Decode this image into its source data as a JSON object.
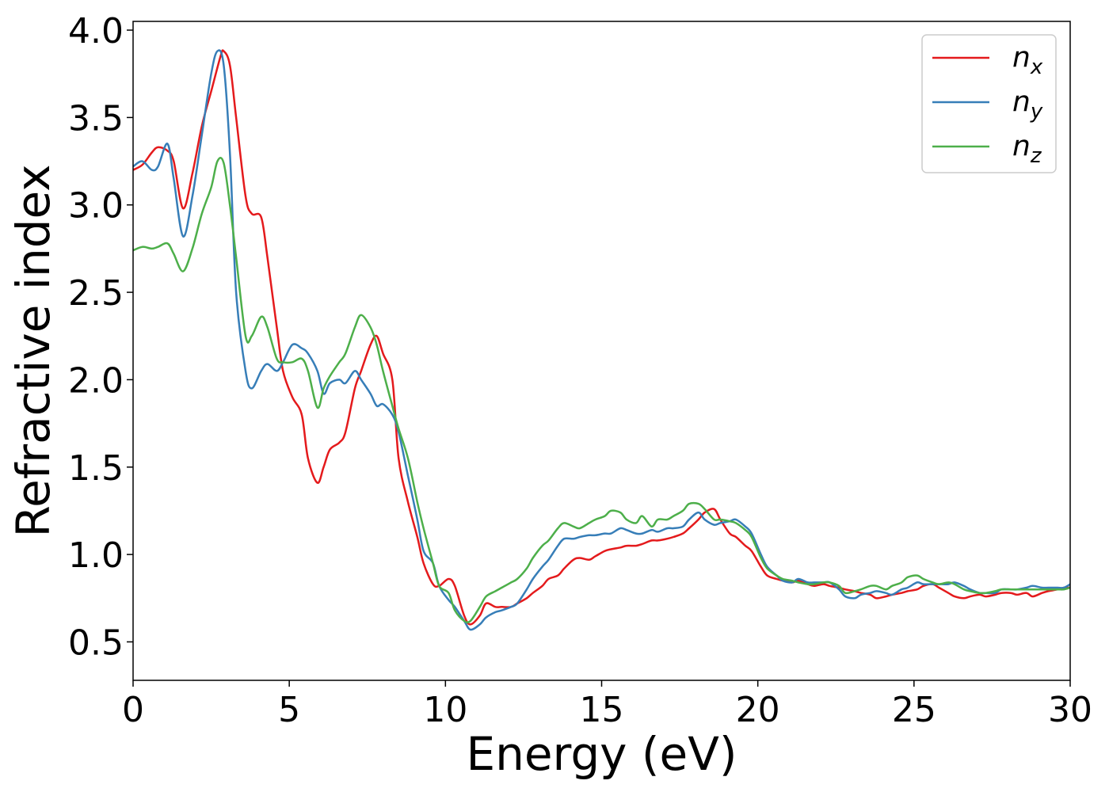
{
  "chart_data": {
    "type": "line",
    "xlabel": "Energy (eV)",
    "ylabel": "Refractive index",
    "xlim": [
      0,
      30
    ],
    "ylim": [
      0.28,
      4.05
    ],
    "xticks": [
      "0",
      "5",
      "10",
      "15",
      "20",
      "25",
      "30"
    ],
    "yticks": [
      "0.5",
      "1.0",
      "1.5",
      "2.0",
      "2.5",
      "3.0",
      "3.5",
      "4.0"
    ],
    "grid": false,
    "legend_position": "top-right",
    "series": [
      {
        "name": "n",
        "subscript": "x",
        "color": "#e41a1c",
        "x": [
          0,
          0.3,
          0.6,
          0.8,
          1.1,
          1.3,
          1.6,
          1.9,
          2.2,
          2.5,
          2.8,
          2.9,
          3.1,
          3.3,
          3.6,
          3.8,
          4.1,
          4.3,
          4.6,
          4.8,
          5.1,
          5.4,
          5.6,
          5.9,
          6.1,
          6.3,
          6.6,
          6.8,
          7.1,
          7.3,
          7.6,
          7.8,
          8.0,
          8.3,
          8.5,
          8.8,
          9.1,
          9.3,
          9.6,
          9.8,
          10.1,
          10.3,
          10.6,
          10.8,
          11.1,
          11.3,
          11.6,
          11.8,
          12.1,
          12.3,
          12.6,
          12.8,
          13.1,
          13.3,
          13.6,
          13.8,
          14.1,
          14.3,
          14.6,
          14.8,
          15.1,
          15.3,
          15.6,
          15.8,
          16.1,
          16.3,
          16.6,
          16.8,
          17.1,
          17.3,
          17.6,
          17.8,
          18.1,
          18.3,
          18.6,
          18.8,
          19.1,
          19.3,
          19.6,
          19.8,
          20.1,
          20.3,
          20.6,
          20.8,
          21.1,
          21.3,
          21.6,
          21.8,
          22.1,
          22.3,
          22.6,
          22.8,
          23.1,
          23.3,
          23.6,
          23.8,
          24.1,
          24.3,
          24.6,
          24.8,
          25.1,
          25.3,
          25.6,
          25.8,
          26.1,
          26.3,
          26.6,
          26.8,
          27.1,
          27.3,
          27.6,
          27.8,
          28.1,
          28.3,
          28.6,
          28.8,
          29.1,
          29.3,
          29.6,
          29.8,
          30
        ],
        "y": [
          3.2,
          3.23,
          3.3,
          3.33,
          3.31,
          3.25,
          2.98,
          3.18,
          3.45,
          3.65,
          3.85,
          3.88,
          3.8,
          3.5,
          3.05,
          2.95,
          2.93,
          2.7,
          2.3,
          2.05,
          1.9,
          1.8,
          1.55,
          1.41,
          1.5,
          1.6,
          1.64,
          1.7,
          1.95,
          2.05,
          2.2,
          2.25,
          2.15,
          2.0,
          1.55,
          1.3,
          1.1,
          0.95,
          0.83,
          0.82,
          0.86,
          0.82,
          0.65,
          0.6,
          0.65,
          0.72,
          0.7,
          0.7,
          0.7,
          0.72,
          0.75,
          0.78,
          0.82,
          0.86,
          0.88,
          0.92,
          0.97,
          0.98,
          0.97,
          0.99,
          1.02,
          1.03,
          1.04,
          1.05,
          1.05,
          1.06,
          1.08,
          1.08,
          1.09,
          1.1,
          1.12,
          1.15,
          1.2,
          1.24,
          1.26,
          1.2,
          1.12,
          1.1,
          1.05,
          1.02,
          0.93,
          0.88,
          0.86,
          0.85,
          0.84,
          0.85,
          0.83,
          0.82,
          0.83,
          0.82,
          0.81,
          0.8,
          0.79,
          0.78,
          0.77,
          0.75,
          0.76,
          0.77,
          0.78,
          0.79,
          0.8,
          0.82,
          0.83,
          0.81,
          0.78,
          0.76,
          0.75,
          0.76,
          0.77,
          0.76,
          0.77,
          0.78,
          0.78,
          0.77,
          0.78,
          0.76,
          0.78,
          0.79,
          0.8,
          0.81,
          0.81
        ]
      },
      {
        "name": "n",
        "subscript": "y",
        "color": "#377eb8",
        "x": [
          0,
          0.3,
          0.6,
          0.8,
          1.1,
          1.3,
          1.6,
          1.9,
          2.2,
          2.5,
          2.7,
          2.9,
          3.1,
          3.3,
          3.6,
          3.8,
          4.1,
          4.3,
          4.6,
          4.8,
          5.1,
          5.4,
          5.6,
          5.9,
          6.1,
          6.3,
          6.6,
          6.8,
          7.1,
          7.3,
          7.6,
          7.8,
          8.0,
          8.3,
          8.5,
          8.8,
          9.1,
          9.3,
          9.6,
          9.8,
          10.1,
          10.3,
          10.6,
          10.8,
          11.1,
          11.3,
          11.6,
          11.8,
          12.1,
          12.3,
          12.6,
          12.8,
          13.1,
          13.3,
          13.6,
          13.8,
          14.1,
          14.3,
          14.6,
          14.8,
          15.1,
          15.3,
          15.6,
          15.8,
          16.1,
          16.3,
          16.6,
          16.8,
          17.1,
          17.3,
          17.6,
          17.8,
          18.1,
          18.3,
          18.6,
          18.8,
          19.1,
          19.3,
          19.6,
          19.8,
          20.1,
          20.3,
          20.6,
          20.8,
          21.1,
          21.3,
          21.6,
          21.8,
          22.1,
          22.3,
          22.6,
          22.8,
          23.1,
          23.3,
          23.6,
          23.8,
          24.1,
          24.3,
          24.6,
          24.8,
          25.1,
          25.3,
          25.6,
          25.8,
          26.1,
          26.3,
          26.6,
          26.8,
          27.1,
          27.3,
          27.6,
          27.8,
          28.1,
          28.3,
          28.6,
          28.8,
          29.1,
          29.3,
          29.6,
          29.8,
          30
        ],
        "y": [
          3.22,
          3.25,
          3.2,
          3.22,
          3.35,
          3.15,
          2.82,
          3.05,
          3.4,
          3.75,
          3.88,
          3.8,
          3.3,
          2.5,
          2.05,
          1.95,
          2.05,
          2.09,
          2.05,
          2.1,
          2.2,
          2.18,
          2.15,
          2.05,
          1.92,
          1.98,
          2.0,
          1.98,
          2.05,
          2.0,
          1.92,
          1.85,
          1.86,
          1.8,
          1.7,
          1.45,
          1.2,
          1.02,
          0.95,
          0.82,
          0.74,
          0.7,
          0.62,
          0.57,
          0.6,
          0.64,
          0.67,
          0.68,
          0.7,
          0.72,
          0.8,
          0.86,
          0.93,
          0.97,
          1.05,
          1.09,
          1.09,
          1.1,
          1.11,
          1.11,
          1.12,
          1.12,
          1.15,
          1.14,
          1.12,
          1.12,
          1.14,
          1.13,
          1.15,
          1.15,
          1.16,
          1.2,
          1.24,
          1.2,
          1.17,
          1.18,
          1.19,
          1.2,
          1.16,
          1.12,
          1.0,
          0.93,
          0.88,
          0.85,
          0.84,
          0.86,
          0.84,
          0.84,
          0.84,
          0.84,
          0.8,
          0.76,
          0.75,
          0.77,
          0.78,
          0.79,
          0.78,
          0.77,
          0.8,
          0.81,
          0.84,
          0.83,
          0.83,
          0.83,
          0.83,
          0.84,
          0.82,
          0.8,
          0.78,
          0.78,
          0.78,
          0.8,
          0.8,
          0.8,
          0.81,
          0.82,
          0.81,
          0.81,
          0.81,
          0.81,
          0.83
        ]
      },
      {
        "name": "n",
        "subscript": "z",
        "color": "#4daf4a",
        "x": [
          0,
          0.3,
          0.6,
          0.8,
          1.1,
          1.3,
          1.6,
          1.9,
          2.2,
          2.5,
          2.7,
          2.9,
          3.1,
          3.3,
          3.6,
          3.8,
          4.1,
          4.3,
          4.6,
          4.8,
          5.1,
          5.4,
          5.6,
          5.9,
          6.1,
          6.3,
          6.6,
          6.8,
          7.1,
          7.3,
          7.6,
          7.8,
          8.0,
          8.3,
          8.5,
          8.8,
          9.1,
          9.3,
          9.6,
          9.8,
          10.1,
          10.3,
          10.6,
          10.8,
          11.1,
          11.3,
          11.6,
          11.8,
          12.1,
          12.3,
          12.6,
          12.8,
          13.1,
          13.3,
          13.6,
          13.8,
          14.1,
          14.3,
          14.6,
          14.8,
          15.1,
          15.3,
          15.6,
          15.8,
          16.1,
          16.3,
          16.6,
          16.8,
          17.1,
          17.3,
          17.6,
          17.8,
          18.1,
          18.3,
          18.6,
          18.8,
          19.1,
          19.3,
          19.6,
          19.8,
          20.1,
          20.3,
          20.6,
          20.8,
          21.1,
          21.3,
          21.6,
          21.8,
          22.1,
          22.3,
          22.6,
          22.8,
          23.1,
          23.3,
          23.6,
          23.8,
          24.1,
          24.3,
          24.6,
          24.8,
          25.1,
          25.3,
          25.6,
          25.8,
          26.1,
          26.3,
          26.6,
          26.8,
          27.1,
          27.3,
          27.6,
          27.8,
          28.1,
          28.3,
          28.6,
          28.8,
          29.1,
          29.3,
          29.6,
          29.8,
          30
        ],
        "y": [
          2.74,
          2.76,
          2.75,
          2.76,
          2.78,
          2.72,
          2.62,
          2.75,
          2.95,
          3.1,
          3.25,
          3.24,
          3.0,
          2.7,
          2.25,
          2.25,
          2.36,
          2.3,
          2.12,
          2.1,
          2.1,
          2.12,
          2.05,
          1.84,
          1.95,
          2.02,
          2.1,
          2.15,
          2.3,
          2.37,
          2.3,
          2.2,
          2.05,
          1.85,
          1.72,
          1.55,
          1.3,
          1.15,
          0.95,
          0.82,
          0.78,
          0.68,
          0.62,
          0.62,
          0.7,
          0.76,
          0.79,
          0.81,
          0.84,
          0.86,
          0.92,
          0.98,
          1.05,
          1.08,
          1.15,
          1.18,
          1.16,
          1.15,
          1.18,
          1.2,
          1.22,
          1.25,
          1.24,
          1.2,
          1.18,
          1.22,
          1.16,
          1.2,
          1.2,
          1.22,
          1.25,
          1.29,
          1.29,
          1.26,
          1.2,
          1.2,
          1.19,
          1.18,
          1.14,
          1.1,
          0.98,
          0.92,
          0.88,
          0.86,
          0.85,
          0.84,
          0.83,
          0.83,
          0.84,
          0.84,
          0.82,
          0.78,
          0.79,
          0.8,
          0.82,
          0.82,
          0.8,
          0.82,
          0.84,
          0.87,
          0.88,
          0.86,
          0.84,
          0.83,
          0.84,
          0.83,
          0.8,
          0.79,
          0.78,
          0.78,
          0.79,
          0.8,
          0.8,
          0.8,
          0.8,
          0.8,
          0.8,
          0.8,
          0.8,
          0.8,
          0.81
        ]
      }
    ]
  }
}
